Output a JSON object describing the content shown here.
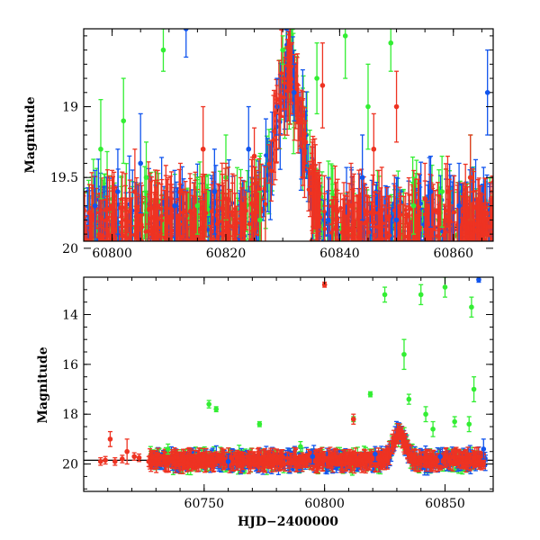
{
  "colors": {
    "model_curve": "#000000",
    "green_band": "#33ee33",
    "blue_band": "#1155ee",
    "red_band": "#ee3322"
  },
  "chart_data": [
    {
      "type": "scatter",
      "panel": "top",
      "xlim": [
        60795,
        60867
      ],
      "ylim": [
        19.95,
        18.45
      ],
      "y_inverted": true,
      "xticks": [
        60800,
        60820,
        60840,
        60860
      ],
      "yticks": [
        19,
        19.5,
        20
      ],
      "ytick_labels": [
        "19",
        "19.5",
        "20"
      ],
      "xlabel": "",
      "ylabel": "Magnitude",
      "model": {
        "baseline": 19.85,
        "peak_time": 60831,
        "peak_mag": 18.75,
        "rise_width_days": 2.5,
        "fall_width_days": 2.5
      },
      "series": [
        {
          "color": "green_band",
          "sample_points": [
            {
              "x": 60798,
              "y": 19.3,
              "err": 0.35
            },
            {
              "x": 60802,
              "y": 19.1,
              "err": 0.3
            },
            {
              "x": 60806,
              "y": 19.5,
              "err": 0.25
            },
            {
              "x": 60809,
              "y": 18.6,
              "err": 0.15
            },
            {
              "x": 60815,
              "y": 19.7,
              "err": 0.2
            },
            {
              "x": 60820,
              "y": 19.5,
              "err": 0.3
            },
            {
              "x": 60826,
              "y": 19.8,
              "err": 0.2
            },
            {
              "x": 60830,
              "y": 18.6,
              "err": 0.1
            },
            {
              "x": 60836,
              "y": 18.8,
              "err": 0.25
            },
            {
              "x": 60841,
              "y": 18.5,
              "err": 0.3
            },
            {
              "x": 60845,
              "y": 19.0,
              "err": 0.3
            },
            {
              "x": 60849,
              "y": 18.55,
              "err": 0.2
            },
            {
              "x": 60853,
              "y": 19.7,
              "err": 0.2
            },
            {
              "x": 60858,
              "y": 19.6,
              "err": 0.25
            },
            {
              "x": 60863,
              "y": 19.5,
              "err": 0.3
            }
          ]
        },
        {
          "color": "blue_band",
          "sample_points": [
            {
              "x": 60797,
              "y": 19.7,
              "err": 0.25
            },
            {
              "x": 60801,
              "y": 19.6,
              "err": 0.3
            },
            {
              "x": 60805,
              "y": 19.4,
              "err": 0.35
            },
            {
              "x": 60811,
              "y": 19.7,
              "err": 0.25
            },
            {
              "x": 60813,
              "y": 18.45,
              "err": 0.2
            },
            {
              "x": 60818,
              "y": 19.6,
              "err": 0.3
            },
            {
              "x": 60824,
              "y": 19.3,
              "err": 0.3
            },
            {
              "x": 60829,
              "y": 19.0,
              "err": 0.2
            },
            {
              "x": 60832,
              "y": 18.9,
              "err": 0.2
            },
            {
              "x": 60838,
              "y": 19.8,
              "err": 0.3
            },
            {
              "x": 60844,
              "y": 19.5,
              "err": 0.3
            },
            {
              "x": 60850,
              "y": 19.8,
              "err": 0.3
            },
            {
              "x": 60856,
              "y": 19.6,
              "err": 0.25
            },
            {
              "x": 60861,
              "y": 19.7,
              "err": 0.3
            },
            {
              "x": 60866,
              "y": 18.9,
              "err": 0.3
            }
          ]
        },
        {
          "color": "red_band",
          "sample_points": [
            {
              "x": 60796,
              "y": 19.75,
              "err": 0.2
            },
            {
              "x": 60800,
              "y": 19.7,
              "err": 0.25
            },
            {
              "x": 60804,
              "y": 19.6,
              "err": 0.3
            },
            {
              "x": 60808,
              "y": 19.7,
              "err": 0.25
            },
            {
              "x": 60812,
              "y": 19.6,
              "err": 0.2
            },
            {
              "x": 60816,
              "y": 19.3,
              "err": 0.3
            },
            {
              "x": 60820,
              "y": 19.65,
              "err": 0.25
            },
            {
              "x": 60825,
              "y": 19.35,
              "err": 0.2
            },
            {
              "x": 60829,
              "y": 18.95,
              "err": 0.1
            },
            {
              "x": 60831,
              "y": 18.75,
              "err": 0.1
            },
            {
              "x": 60834,
              "y": 19.25,
              "err": 0.15
            },
            {
              "x": 60837,
              "y": 18.85,
              "err": 0.3
            },
            {
              "x": 60842,
              "y": 19.7,
              "err": 0.3
            },
            {
              "x": 60846,
              "y": 19.3,
              "err": 0.25
            },
            {
              "x": 60850,
              "y": 19.0,
              "err": 0.25
            },
            {
              "x": 60855,
              "y": 19.65,
              "err": 0.25
            },
            {
              "x": 60859,
              "y": 19.6,
              "err": 0.25
            },
            {
              "x": 60863,
              "y": 19.5,
              "err": 0.3
            }
          ]
        }
      ]
    },
    {
      "type": "scatter",
      "panel": "bottom",
      "xlim": [
        60700,
        60870
      ],
      "ylim": [
        21.1,
        12.5
      ],
      "y_inverted": true,
      "xticks": [
        60750,
        60800,
        60850
      ],
      "yticks": [
        14,
        16,
        18,
        20
      ],
      "ytick_labels": [
        "14",
        "16",
        "18",
        "20"
      ],
      "xlabel": "HJD−2400000",
      "ylabel": "Magnitude",
      "model": {
        "baseline": 19.85,
        "peak_time": 60831,
        "peak_mag": 18.75,
        "rise_width_days": 2.5,
        "fall_width_days": 2.5
      },
      "series": [
        {
          "color": "green_band",
          "sample_points": [
            {
              "x": 60735,
              "y": 19.4,
              "err": 0.2
            },
            {
              "x": 60752,
              "y": 17.6,
              "err": 0.15
            },
            {
              "x": 60755,
              "y": 17.8,
              "err": 0.1
            },
            {
              "x": 60773,
              "y": 18.4,
              "err": 0.1
            },
            {
              "x": 60790,
              "y": 19.3,
              "err": 0.2
            },
            {
              "x": 60812,
              "y": 18.2,
              "err": 0.1
            },
            {
              "x": 60819,
              "y": 17.2,
              "err": 0.1
            },
            {
              "x": 60825,
              "y": 13.2,
              "err": 0.3
            },
            {
              "x": 60833,
              "y": 15.6,
              "err": 0.6
            },
            {
              "x": 60835,
              "y": 17.4,
              "err": 0.2
            },
            {
              "x": 60840,
              "y": 13.2,
              "err": 0.4
            },
            {
              "x": 60842,
              "y": 18.0,
              "err": 0.3
            },
            {
              "x": 60845,
              "y": 18.6,
              "err": 0.3
            },
            {
              "x": 60850,
              "y": 12.9,
              "err": 0.4
            },
            {
              "x": 60854,
              "y": 18.3,
              "err": 0.2
            },
            {
              "x": 60860,
              "y": 18.4,
              "err": 0.3
            },
            {
              "x": 60861,
              "y": 13.7,
              "err": 0.4
            },
            {
              "x": 60862,
              "y": 17.0,
              "err": 0.5
            }
          ]
        },
        {
          "color": "blue_band",
          "sample_points": [
            {
              "x": 60760,
              "y": 19.9,
              "err": 0.3
            },
            {
              "x": 60795,
              "y": 19.7,
              "err": 0.3
            },
            {
              "x": 60821,
              "y": 19.6,
              "err": 0.3
            },
            {
              "x": 60848,
              "y": 19.7,
              "err": 0.3
            },
            {
              "x": 60864,
              "y": 12.6,
              "err": 0.1
            },
            {
              "x": 60866,
              "y": 19.4,
              "err": 0.4
            }
          ]
        },
        {
          "color": "red_band",
          "sample_points": [
            {
              "x": 60707,
              "y": 19.9,
              "err": 0.15
            },
            {
              "x": 60709,
              "y": 19.85,
              "err": 0.15
            },
            {
              "x": 60711,
              "y": 19.0,
              "err": 0.3
            },
            {
              "x": 60713,
              "y": 19.9,
              "err": 0.15
            },
            {
              "x": 60716,
              "y": 19.8,
              "err": 0.15
            },
            {
              "x": 60718,
              "y": 19.5,
              "err": 0.5
            },
            {
              "x": 60721,
              "y": 19.7,
              "err": 0.15
            },
            {
              "x": 60723,
              "y": 19.75,
              "err": 0.15
            },
            {
              "x": 60727,
              "y": 19.9,
              "err": 0.2
            },
            {
              "x": 60800,
              "y": 12.8,
              "err": 0.1
            },
            {
              "x": 60812,
              "y": 18.2,
              "err": 0.2
            },
            {
              "x": 60829,
              "y": 19.0,
              "err": 0.2
            },
            {
              "x": 60831,
              "y": 18.8,
              "err": 0.2
            }
          ]
        }
      ]
    }
  ]
}
